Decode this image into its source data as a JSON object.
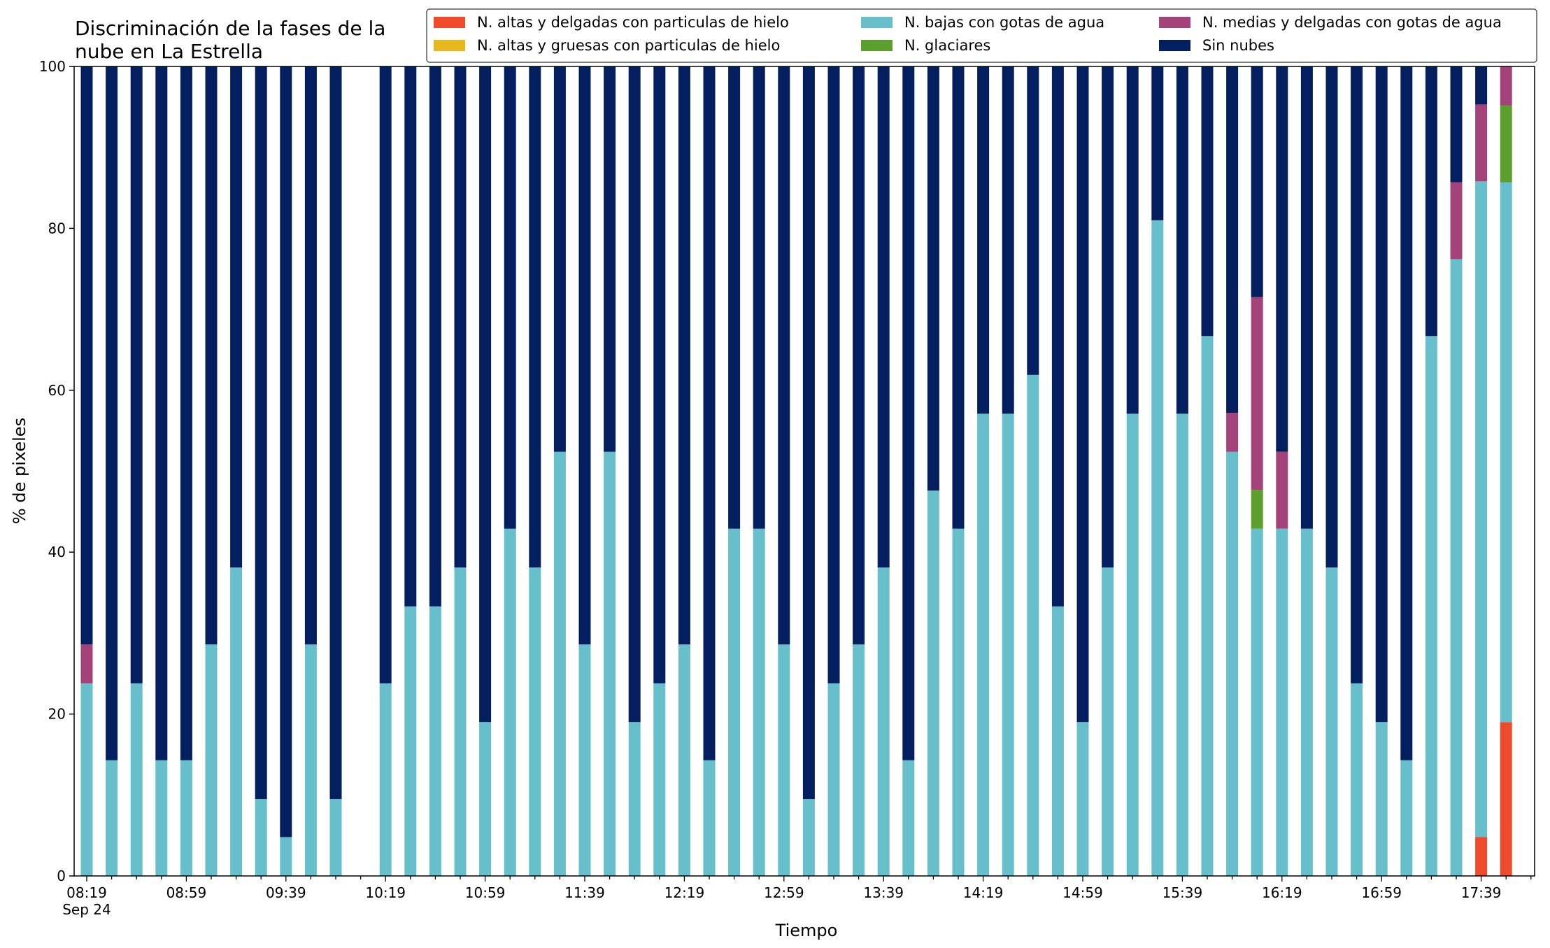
{
  "chart_data": {
    "type": "bar",
    "stacked": true,
    "title_line1": "Discriminación de la fases de la",
    "title_line2": "nube en La Estrella",
    "xlabel": "Tiempo",
    "ylabel": "% de pixeles",
    "ylim": [
      0,
      100
    ],
    "yticks": [
      "0",
      "20",
      "40",
      "60",
      "80",
      "100"
    ],
    "date_label": "Sep 24",
    "grid": false,
    "legend_position": "top-right",
    "times": [
      "08:19",
      "08:29",
      "08:39",
      "08:49",
      "08:59",
      "09:09",
      "09:19",
      "09:29",
      "09:39",
      "09:49",
      "09:59",
      "10:09",
      "10:19",
      "10:29",
      "10:39",
      "10:49",
      "10:59",
      "11:09",
      "11:19",
      "11:29",
      "11:39",
      "11:49",
      "11:59",
      "12:09",
      "12:19",
      "12:29",
      "12:39",
      "12:49",
      "12:59",
      "13:09",
      "13:19",
      "13:29",
      "13:39",
      "13:49",
      "13:59",
      "14:09",
      "14:19",
      "14:29",
      "14:39",
      "14:49",
      "14:59",
      "15:09",
      "15:19",
      "15:29",
      "15:39",
      "15:49",
      "15:59",
      "16:09",
      "16:19",
      "16:29",
      "16:39",
      "16:49",
      "16:59",
      "17:09",
      "17:19",
      "17:29",
      "17:39",
      "17:49"
    ],
    "xtick_labels": [
      "08:19",
      "08:59",
      "09:39",
      "10:19",
      "10:59",
      "11:39",
      "12:19",
      "12:59",
      "13:39",
      "14:19",
      "14:59",
      "15:39",
      "16:19",
      "16:59",
      "17:39"
    ],
    "series": [
      {
        "name": "N. altas y delgadas con particulas de hielo",
        "color": "#ee4b2b",
        "values": [
          0,
          0,
          0,
          0,
          0,
          0,
          0,
          0,
          0,
          0,
          0,
          null,
          0,
          0,
          0,
          0,
          0,
          0,
          0,
          0,
          0,
          0,
          0,
          0,
          0,
          0,
          0,
          0,
          0,
          0,
          0,
          0,
          0,
          0,
          0,
          0,
          0,
          0,
          0,
          0,
          0,
          0,
          0,
          0,
          0,
          0,
          0,
          0,
          0,
          0,
          0,
          0,
          0,
          0,
          0,
          0,
          4.8,
          19.0
        ]
      },
      {
        "name": "N. altas y gruesas con particulas de hielo",
        "color": "#e6b81e",
        "values": [
          0,
          0,
          0,
          0,
          0,
          0,
          0,
          0,
          0,
          0,
          0,
          null,
          0,
          0,
          0,
          0,
          0,
          0,
          0,
          0,
          0,
          0,
          0,
          0,
          0,
          0,
          0,
          0,
          0,
          0,
          0,
          0,
          0,
          0,
          0,
          0,
          0,
          0,
          0,
          0,
          0,
          0,
          0,
          0,
          0,
          0,
          0,
          0,
          0,
          0,
          0,
          0,
          0,
          0,
          0,
          0,
          0,
          0
        ]
      },
      {
        "name": "N. bajas con gotas de agua",
        "color": "#66bfcb",
        "values": [
          23.8,
          14.3,
          23.8,
          14.3,
          14.3,
          28.6,
          38.1,
          9.5,
          4.8,
          28.6,
          9.5,
          null,
          23.8,
          33.3,
          33.3,
          38.1,
          19.0,
          42.9,
          38.1,
          52.4,
          28.6,
          52.4,
          19.0,
          23.8,
          28.6,
          14.3,
          42.9,
          42.9,
          28.6,
          9.5,
          23.8,
          28.6,
          38.1,
          14.3,
          47.6,
          42.9,
          57.1,
          57.1,
          61.9,
          33.3,
          19.0,
          38.1,
          57.1,
          81.0,
          57.1,
          66.7,
          52.4,
          42.9,
          42.9,
          42.9,
          38.1,
          23.8,
          19.0,
          14.3,
          66.7,
          76.2,
          81.0,
          66.7
        ]
      },
      {
        "name": "N. glaciares",
        "color": "#5d9f2c",
        "values": [
          0,
          0,
          0,
          0,
          0,
          0,
          0,
          0,
          0,
          0,
          0,
          null,
          0,
          0,
          0,
          0,
          0,
          0,
          0,
          0,
          0,
          0,
          0,
          0,
          0,
          0,
          0,
          0,
          0,
          0,
          0,
          0,
          0,
          0,
          0,
          0,
          0,
          0,
          0,
          0,
          0,
          0,
          0,
          0,
          0,
          0,
          0,
          4.8,
          0,
          0,
          0,
          0,
          0,
          0,
          0,
          0,
          0,
          9.5
        ]
      },
      {
        "name": "N. medias y delgadas con gotas de agua",
        "color": "#a4437a",
        "values": [
          4.8,
          0,
          0,
          0,
          0,
          0,
          0,
          0,
          0,
          0,
          0,
          null,
          0,
          0,
          0,
          0,
          0,
          0,
          0,
          0,
          0,
          0,
          0,
          0,
          0,
          0,
          0,
          0,
          0,
          0,
          0,
          0,
          0,
          0,
          0,
          0,
          0,
          0,
          0,
          0,
          0,
          0,
          0,
          0,
          0,
          0,
          4.8,
          23.8,
          9.5,
          0,
          0,
          0,
          0,
          0,
          0,
          9.5,
          9.5,
          4.8
        ]
      },
      {
        "name": "Sin nubes",
        "color": "#041f5f",
        "values": [
          71.4,
          85.7,
          76.2,
          85.7,
          85.7,
          71.4,
          61.9,
          90.5,
          95.2,
          71.4,
          90.5,
          null,
          76.2,
          66.7,
          66.7,
          61.9,
          81.0,
          57.1,
          61.9,
          47.6,
          71.4,
          47.6,
          81.0,
          76.2,
          71.4,
          85.7,
          57.1,
          57.1,
          71.4,
          90.5,
          76.2,
          71.4,
          61.9,
          85.7,
          52.4,
          57.1,
          42.9,
          42.9,
          38.1,
          66.7,
          81.0,
          61.9,
          42.9,
          19.0,
          42.9,
          33.3,
          42.9,
          28.6,
          47.6,
          57.1,
          61.9,
          76.2,
          81.0,
          85.7,
          33.3,
          14.3,
          4.7,
          0
        ]
      }
    ]
  }
}
